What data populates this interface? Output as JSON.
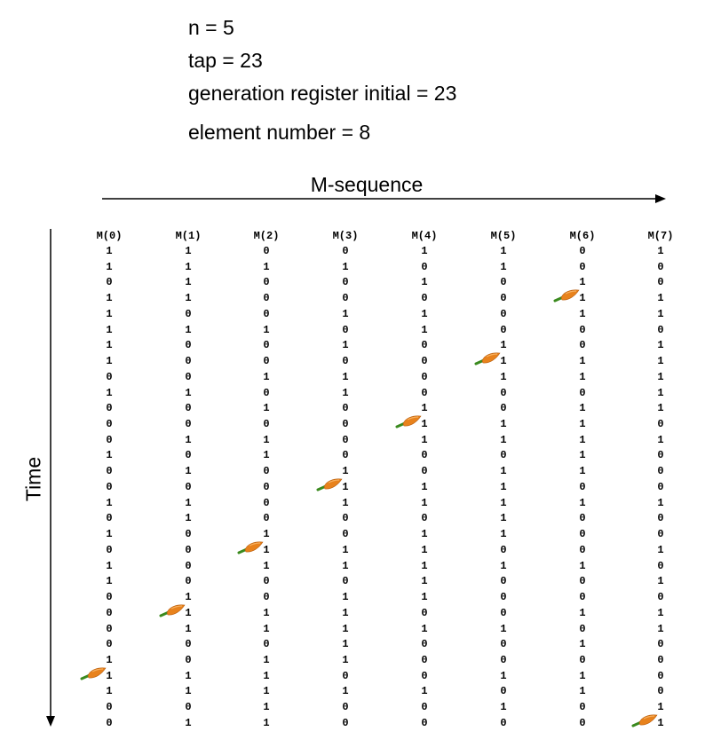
{
  "params": {
    "n": "n = 5",
    "tap": "tap = 23",
    "initial": "generation register initial = 23",
    "element_number": "element number = 8"
  },
  "axes": {
    "horizontal_label": "M-sequence",
    "vertical_label": "Time"
  },
  "columns": [
    {
      "header": "M(0)",
      "bits": [
        1,
        1,
        0,
        1,
        1,
        1,
        1,
        1,
        0,
        1,
        0,
        0,
        0,
        1,
        0,
        0,
        1,
        0,
        1,
        0,
        1,
        1,
        0,
        0,
        0,
        0,
        1,
        1,
        1,
        0,
        0
      ],
      "carrot_row": 28
    },
    {
      "header": "M(1)",
      "bits": [
        1,
        1,
        1,
        1,
        0,
        1,
        0,
        0,
        0,
        1,
        0,
        0,
        1,
        0,
        1,
        0,
        1,
        1,
        0,
        0,
        0,
        0,
        1,
        1,
        1,
        0,
        0,
        1,
        1,
        0,
        1
      ],
      "carrot_row": 24
    },
    {
      "header": "M(2)",
      "bits": [
        0,
        1,
        0,
        0,
        0,
        1,
        0,
        0,
        1,
        0,
        1,
        0,
        1,
        1,
        0,
        0,
        0,
        0,
        1,
        1,
        1,
        0,
        0,
        1,
        1,
        0,
        1,
        1,
        1,
        1,
        1
      ],
      "carrot_row": 20
    },
    {
      "header": "M(3)",
      "bits": [
        0,
        1,
        0,
        0,
        1,
        0,
        1,
        0,
        1,
        1,
        0,
        0,
        0,
        0,
        1,
        1,
        1,
        0,
        0,
        1,
        1,
        0,
        1,
        1,
        1,
        1,
        1,
        0,
        1,
        0,
        0
      ],
      "carrot_row": 16
    },
    {
      "header": "M(4)",
      "bits": [
        1,
        0,
        1,
        0,
        1,
        1,
        0,
        0,
        0,
        0,
        1,
        1,
        1,
        0,
        0,
        1,
        1,
        0,
        1,
        1,
        1,
        1,
        1,
        0,
        1,
        0,
        0,
        0,
        1,
        0,
        0
      ],
      "carrot_row": 12
    },
    {
      "header": "M(5)",
      "bits": [
        1,
        1,
        0,
        0,
        0,
        0,
        1,
        1,
        1,
        0,
        0,
        1,
        1,
        0,
        1,
        1,
        1,
        1,
        1,
        0,
        1,
        0,
        0,
        0,
        1,
        0,
        0,
        1,
        0,
        1,
        0
      ],
      "carrot_row": 8
    },
    {
      "header": "M(6)",
      "bits": [
        0,
        0,
        1,
        1,
        1,
        0,
        0,
        1,
        1,
        0,
        1,
        1,
        1,
        1,
        1,
        0,
        1,
        0,
        0,
        0,
        1,
        0,
        0,
        1,
        0,
        1,
        0,
        1,
        1,
        0,
        0
      ],
      "carrot_row": 4
    },
    {
      "header": "M(7)",
      "bits": [
        1,
        0,
        0,
        1,
        1,
        0,
        1,
        1,
        1,
        1,
        1,
        0,
        1,
        0,
        0,
        0,
        1,
        0,
        0,
        1,
        0,
        1,
        0,
        1,
        1,
        0,
        0,
        0,
        0,
        1,
        1
      ],
      "carrot_row": 31
    }
  ],
  "colors": {
    "carrot": "#e8821c",
    "stem": "#3a8a1e",
    "text": "#000000"
  }
}
